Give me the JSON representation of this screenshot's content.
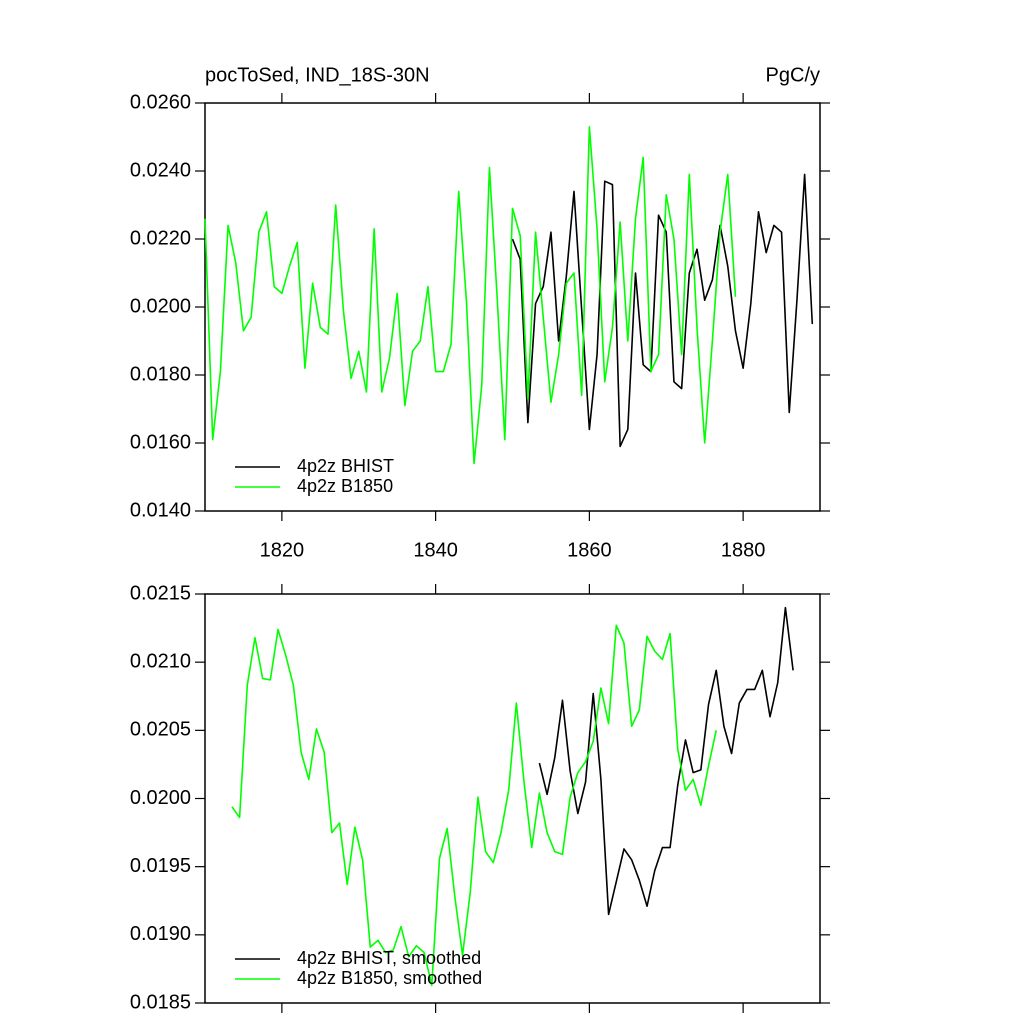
{
  "chart_data": [
    {
      "type": "line",
      "title": "pocToSed, IND_18S-30N",
      "units": "PgC/y",
      "x": [
        1810,
        1811,
        1812,
        1813,
        1814,
        1815,
        1816,
        1817,
        1818,
        1819,
        1820,
        1821,
        1822,
        1823,
        1824,
        1825,
        1826,
        1827,
        1828,
        1829,
        1830,
        1831,
        1832,
        1833,
        1834,
        1835,
        1836,
        1837,
        1838,
        1839,
        1840,
        1841,
        1842,
        1843,
        1844,
        1845,
        1846,
        1847,
        1848,
        1849,
        1850,
        1851,
        1852,
        1853,
        1854,
        1855,
        1856,
        1857,
        1858,
        1859,
        1860,
        1861,
        1862,
        1863,
        1864,
        1865,
        1866,
        1867,
        1868,
        1869,
        1870,
        1871,
        1872,
        1873,
        1874,
        1875,
        1876,
        1877,
        1878,
        1879,
        1880,
        1881,
        1882,
        1883,
        1884,
        1885,
        1886,
        1887,
        1888,
        1889
      ],
      "series": [
        {
          "name": "4p2z BHIST",
          "color": "#000000",
          "values": [
            null,
            null,
            null,
            null,
            null,
            null,
            null,
            null,
            null,
            null,
            null,
            null,
            null,
            null,
            null,
            null,
            null,
            null,
            null,
            null,
            null,
            null,
            null,
            null,
            null,
            null,
            null,
            null,
            null,
            null,
            null,
            null,
            null,
            null,
            null,
            null,
            null,
            null,
            null,
            null,
            0.022,
            0.0214,
            0.0166,
            0.0201,
            0.0206,
            0.0222,
            0.019,
            0.0209,
            0.0234,
            0.0199,
            0.0164,
            0.0186,
            0.0237,
            0.0236,
            0.0159,
            0.0164,
            0.021,
            0.0183,
            0.0181,
            0.0227,
            0.0222,
            0.0178,
            0.0176,
            0.021,
            0.0217,
            0.0202,
            0.0208,
            0.0224,
            0.0212,
            0.0193,
            0.0182,
            0.0201,
            0.0228,
            0.0216,
            0.0224,
            0.0222,
            0.0169,
            0.0202,
            0.0239,
            0.0195
          ]
        },
        {
          "name": "4p2z B1850",
          "color": "#00ff00",
          "values": [
            0.0226,
            0.0161,
            0.0181,
            0.0224,
            0.0213,
            0.0193,
            0.0197,
            0.0222,
            0.0228,
            0.0206,
            0.0204,
            0.0212,
            0.0219,
            0.0182,
            0.0207,
            0.0194,
            0.0192,
            0.023,
            0.0199,
            0.0179,
            0.0187,
            0.0175,
            0.0223,
            0.0175,
            0.0185,
            0.0204,
            0.0171,
            0.0187,
            0.019,
            0.0206,
            0.0181,
            0.0181,
            0.0189,
            0.0234,
            0.0202,
            0.0154,
            0.0177,
            0.0241,
            0.0203,
            0.0161,
            0.0229,
            0.0221,
            0.0173,
            0.0222,
            0.0197,
            0.0172,
            0.0186,
            0.0207,
            0.021,
            0.0174,
            0.0253,
            0.0223,
            0.0178,
            0.0194,
            0.0225,
            0.019,
            0.0226,
            0.0244,
            0.0181,
            0.0186,
            0.0233,
            0.022,
            0.0186,
            0.0239,
            0.0194,
            0.016,
            0.019,
            0.0222,
            0.0239,
            0.0203,
            null,
            null,
            null,
            null,
            null,
            null,
            null,
            null,
            null,
            null
          ]
        }
      ],
      "xlim": [
        1810,
        1890
      ],
      "xticks": [
        1820,
        1840,
        1860,
        1880
      ],
      "xtick_labels": true,
      "ylim": [
        0.014,
        0.026
      ],
      "yticks": [
        {
          "value": 0.014,
          "label": "0.0140"
        },
        {
          "value": 0.016,
          "label": "0.0160"
        },
        {
          "value": 0.018,
          "label": "0.0180"
        },
        {
          "value": 0.02,
          "label": "0.0200"
        },
        {
          "value": 0.022,
          "label": "0.0220"
        },
        {
          "value": 0.024,
          "label": "0.0240"
        },
        {
          "value": 0.026,
          "label": "0.0260"
        }
      ],
      "legend": "lower left"
    },
    {
      "type": "line",
      "x": [
        1813.5,
        1814.5,
        1815.5,
        1816.5,
        1817.5,
        1818.5,
        1819.5,
        1820.5,
        1821.5,
        1822.5,
        1823.5,
        1824.5,
        1825.5,
        1826.5,
        1827.5,
        1828.5,
        1829.5,
        1830.5,
        1831.5,
        1832.5,
        1833.5,
        1834.5,
        1835.5,
        1836.5,
        1837.5,
        1838.5,
        1839.5,
        1840.5,
        1841.5,
        1842.5,
        1843.5,
        1844.5,
        1845.5,
        1846.5,
        1847.5,
        1848.5,
        1849.5,
        1850.5,
        1851.5,
        1852.5,
        1853.5,
        1854.5,
        1855.5,
        1856.5,
        1857.5,
        1858.5,
        1859.5,
        1860.5,
        1861.5,
        1862.5,
        1863.5,
        1864.5,
        1865.5,
        1866.5,
        1867.5,
        1868.5,
        1869.5,
        1870.5,
        1871.5,
        1872.5,
        1873.5,
        1874.5,
        1875.5,
        1876.5,
        1877.5,
        1878.5,
        1879.5,
        1880.5,
        1881.5,
        1882.5,
        1883.5,
        1884.5,
        1885.5,
        1886.5
      ],
      "series": [
        {
          "name": "4p2z BHIST, smoothed",
          "color": "#000000",
          "values": [
            null,
            null,
            null,
            null,
            null,
            null,
            null,
            null,
            null,
            null,
            null,
            null,
            null,
            null,
            null,
            null,
            null,
            null,
            null,
            null,
            null,
            null,
            null,
            null,
            null,
            null,
            null,
            null,
            null,
            null,
            null,
            null,
            null,
            null,
            null,
            null,
            null,
            null,
            null,
            null,
            0.02026,
            0.02003,
            0.0203,
            0.02072,
            0.0202,
            0.01989,
            0.02012,
            0.02077,
            0.02014,
            0.01915,
            0.01939,
            0.01963,
            0.01955,
            0.0194,
            0.01921,
            0.01947,
            0.01964,
            0.01964,
            0.0201,
            0.02043,
            0.02019,
            0.02021,
            0.02069,
            0.02094,
            0.02053,
            0.02033,
            0.0207,
            0.0208,
            0.0208,
            0.02094,
            0.0206,
            0.02085,
            0.0214,
            0.02094
          ]
        },
        {
          "name": "4p2z B1850, smoothed",
          "color": "#00ff00",
          "values": [
            0.01994,
            0.01986,
            0.02083,
            0.02118,
            0.02088,
            0.02087,
            0.02124,
            0.02105,
            0.02083,
            0.02034,
            0.02014,
            0.02051,
            0.02034,
            0.01975,
            0.01982,
            0.01937,
            0.01979,
            0.01955,
            0.01891,
            0.01896,
            0.01887,
            0.01889,
            0.01906,
            0.01884,
            0.01892,
            0.01887,
            0.01863,
            0.01956,
            0.01978,
            0.01928,
            0.01885,
            0.01931,
            0.02001,
            0.01961,
            0.01953,
            0.01975,
            0.02006,
            0.0207,
            0.02012,
            0.01964,
            0.02004,
            0.01975,
            0.01961,
            0.01959,
            0.02001,
            0.02019,
            0.02027,
            0.02042,
            0.02081,
            0.02055,
            0.02127,
            0.02114,
            0.02053,
            0.02065,
            0.02119,
            0.02108,
            0.02102,
            0.02121,
            0.02036,
            0.02006,
            0.02014,
            0.01995,
            0.02024,
            0.0205,
            null,
            null,
            null,
            null,
            null,
            null,
            null,
            null,
            null,
            null
          ]
        }
      ],
      "xlim": [
        1810,
        1890
      ],
      "xticks": [
        1820,
        1840,
        1860,
        1880
      ],
      "xtick_labels": false,
      "ylim": [
        0.0185,
        0.0215
      ],
      "yticks": [
        0.0185,
        {
          "value": 0.019,
          "label": "0.0190"
        },
        0.0195,
        {
          "value": 0.02,
          "label": "0.0200"
        },
        0.0205,
        {
          "value": 0.021,
          "label": "0.0210"
        },
        0.0215
      ],
      "legend": "lower left"
    }
  ]
}
